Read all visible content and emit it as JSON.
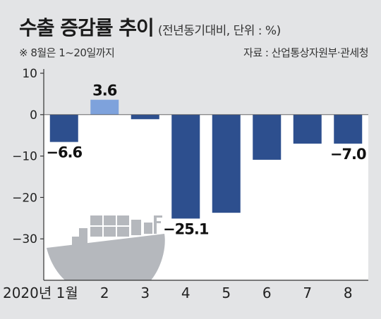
{
  "header": {
    "title": "수출 증감률 추이",
    "unit_note": "(전년동기대비, 단위 : %)",
    "footnote": "※ 8월은 1~20일까지",
    "source": "자료 : 산업통상자원부·관세청"
  },
  "colors": {
    "background": "#e3e4e6",
    "negative_bar": "#2d4f8e",
    "positive_bar": "#7ea2dc",
    "plot_area": "#ffffff",
    "ship": "#b5b8bd"
  },
  "icons": [
    "cargo-ship-icon"
  ],
  "chart_data": {
    "type": "bar",
    "title": "수출 증감률 추이",
    "categories": [
      "2020년 1월",
      "2",
      "3",
      "4",
      "5",
      "6",
      "7",
      "8"
    ],
    "values": [
      -6.6,
      3.6,
      -1.1,
      -25.1,
      -23.7,
      -10.9,
      -7.0,
      -7.0
    ],
    "data_labels": [
      {
        "index": 0,
        "text": "−6.6"
      },
      {
        "index": 1,
        "text": "3.6"
      },
      {
        "index": 3,
        "text": "−25.1"
      },
      {
        "index": 7,
        "text": "−7.0"
      }
    ],
    "ylim": [
      -40,
      10
    ],
    "yticks": [
      10,
      0,
      -10,
      -20,
      -30
    ],
    "ytick_labels": [
      "10",
      "0",
      "−10",
      "−20",
      "−30"
    ],
    "xlabel": "",
    "ylabel": "",
    "grid": false,
    "legend": "none"
  }
}
